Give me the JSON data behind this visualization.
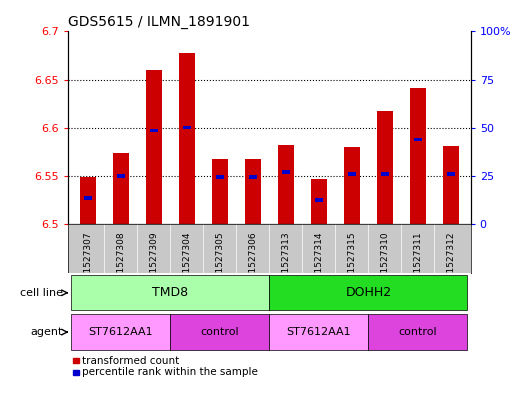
{
  "title": "GDS5615 / ILMN_1891901",
  "samples": [
    "GSM1527307",
    "GSM1527308",
    "GSM1527309",
    "GSM1527304",
    "GSM1527305",
    "GSM1527306",
    "GSM1527313",
    "GSM1527314",
    "GSM1527315",
    "GSM1527310",
    "GSM1527311",
    "GSM1527312"
  ],
  "red_values": [
    6.549,
    6.574,
    6.66,
    6.678,
    6.567,
    6.567,
    6.582,
    6.547,
    6.58,
    6.617,
    6.641,
    6.581
  ],
  "blue_values": [
    6.527,
    6.55,
    6.597,
    6.6,
    6.549,
    6.549,
    6.554,
    6.525,
    6.552,
    6.552,
    6.588,
    6.552
  ],
  "ymin": 6.5,
  "ymax": 6.7,
  "y2min": 0,
  "y2max": 100,
  "yticks": [
    6.5,
    6.55,
    6.6,
    6.65,
    6.7
  ],
  "y2ticks": [
    0,
    25,
    50,
    75,
    100
  ],
  "cell_line_groups": [
    {
      "label": "TMD8",
      "start": 0,
      "end": 6,
      "color": "#aaffaa"
    },
    {
      "label": "DOHH2",
      "start": 6,
      "end": 12,
      "color": "#22dd22"
    }
  ],
  "agent_groups": [
    {
      "label": "ST7612AA1",
      "start": 0,
      "end": 3,
      "color": "#ff99ff"
    },
    {
      "label": "control",
      "start": 3,
      "end": 6,
      "color": "#dd44dd"
    },
    {
      "label": "ST7612AA1",
      "start": 6,
      "end": 9,
      "color": "#ff99ff"
    },
    {
      "label": "control",
      "start": 9,
      "end": 12,
      "color": "#dd44dd"
    }
  ],
  "bar_width": 0.5,
  "red_color": "#cc0000",
  "blue_color": "#0000cc",
  "tick_area_color": "#c8c8c8",
  "legend_items": [
    "transformed count",
    "percentile rank within the sample"
  ],
  "cell_line_label": "cell line",
  "agent_label": "agent"
}
